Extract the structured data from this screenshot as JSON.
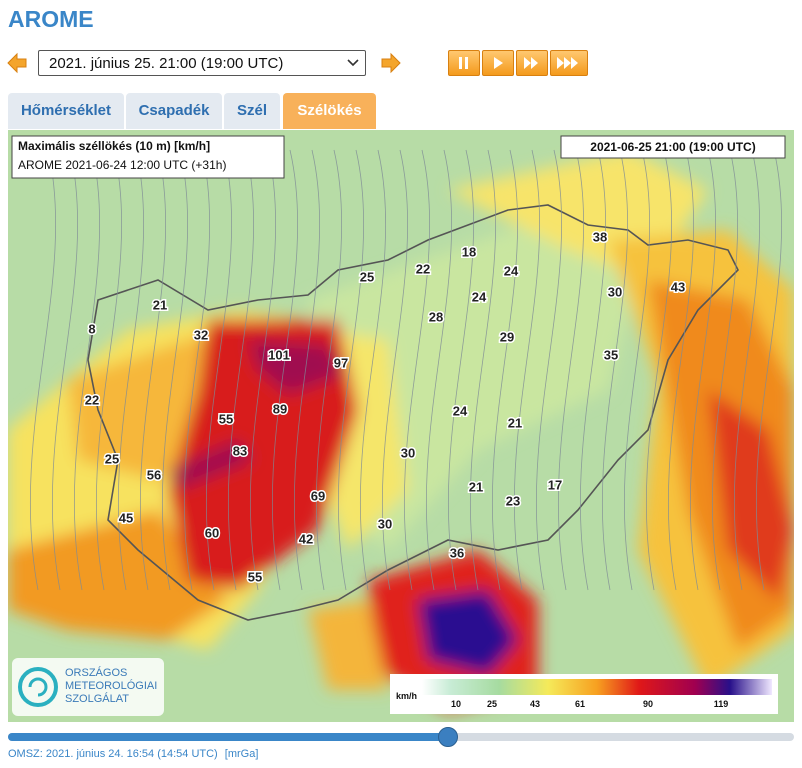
{
  "header": {
    "title": "AROME"
  },
  "controls": {
    "date_select": "2021. június 25. 21:00 (19:00  UTC)"
  },
  "tabs": [
    "Hőmérséklet",
    "Csapadék",
    "Szél",
    "Szélökés"
  ],
  "map": {
    "info_title": "Maximális széllökés (10 m) [km/h]",
    "info_run": "AROME 2021-06-24 12:00 UTC (+31h)",
    "valid_time": "2021-06-25 21:00 (19:00 UTC)",
    "labels": [
      "18",
      "22",
      "25",
      "24",
      "38",
      "43",
      "30",
      "24",
      "28",
      "29",
      "21",
      "8",
      "32",
      "101",
      "97",
      "35",
      "22",
      "89",
      "55",
      "24",
      "21",
      "83",
      "30",
      "25",
      "56",
      "21",
      "17",
      "69",
      "23",
      "45",
      "30",
      "60",
      "42",
      "36",
      "55"
    ],
    "logo": [
      "ORSZÁGOS",
      "METEOROLÓGIAI",
      "SZOLGÁLAT"
    ],
    "legend": {
      "unit": "km/h",
      "ticks": [
        "10",
        "25",
        "43",
        "61",
        "90",
        "119"
      ]
    }
  },
  "footer": {
    "text": "OMSZ: 2021. június 24. 16:54 (14:54  UTC)",
    "credit": "[mrGa]"
  }
}
